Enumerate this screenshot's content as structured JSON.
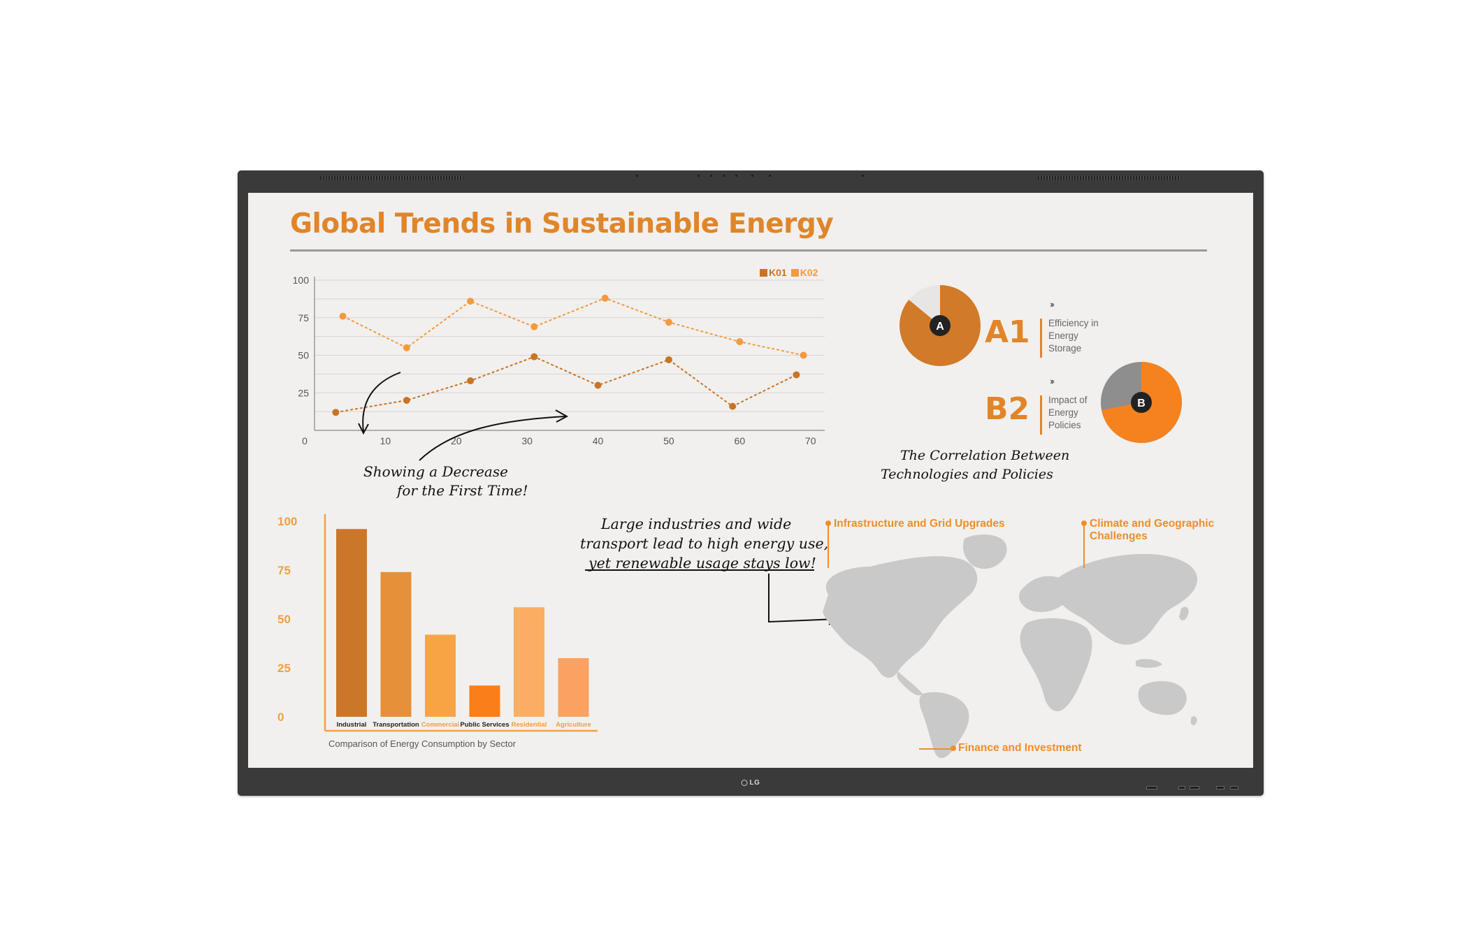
{
  "page": {
    "title": "Global Trends in Sustainable Energy",
    "brand": "LG"
  },
  "line_chart_annotation": [
    "Showing a Decrease",
    "for the First Time!"
  ],
  "bar_chart_annotation": [
    "Large industries and wide",
    "transport lead to high energy use,",
    "yet renewable usage stays low!"
  ],
  "correlation_note": [
    "The Correlation Between",
    "Technologies and Policies"
  ],
  "pies": [
    {
      "marker": "A",
      "code": "A1",
      "desc": [
        "Efficiency in",
        "Energy",
        "Storage"
      ],
      "share": 0.86,
      "fill": "#d17a29",
      "rest": "#e8e6e4"
    },
    {
      "marker": "B",
      "code": "B2",
      "desc": [
        "Impact of",
        "Energy",
        "Policies"
      ],
      "share": 0.72,
      "fill": "#f5821f",
      "rest": "#8e8e8e"
    }
  ],
  "map": {
    "labels": {
      "infrastructure": "Infrastructure and Grid Upgrades",
      "climate": [
        "Climate and Geographic",
        "Challenges"
      ],
      "finance": "Finance and Investment"
    }
  },
  "colors": {
    "accent": "#e0852a",
    "k01": "#c97425",
    "k02": "#f39a3f",
    "map_land": "#c9c9c9",
    "frame": "#3a3a3a"
  },
  "chart_data": [
    {
      "type": "line",
      "title": "",
      "xlabel": "",
      "ylabel": "",
      "xlim": [
        0,
        72
      ],
      "ylim": [
        0,
        100
      ],
      "x_ticks": [
        0,
        10,
        20,
        30,
        40,
        50,
        60,
        70
      ],
      "y_ticks": [
        25,
        50,
        75,
        100
      ],
      "legend": "top-right",
      "grid": true,
      "series": [
        {
          "name": "K01",
          "color": "#c97425",
          "points": [
            [
              3,
              12
            ],
            [
              13,
              20
            ],
            [
              22,
              33
            ],
            [
              31,
              49
            ],
            [
              40,
              30
            ],
            [
              50,
              47
            ],
            [
              59,
              16
            ],
            [
              68,
              37
            ]
          ]
        },
        {
          "name": "K02",
          "color": "#f39a3f",
          "points": [
            [
              4,
              76
            ],
            [
              13,
              55
            ],
            [
              22,
              86
            ],
            [
              31,
              69
            ],
            [
              41,
              88
            ],
            [
              50,
              72
            ],
            [
              60,
              59
            ],
            [
              69,
              50
            ]
          ]
        }
      ]
    },
    {
      "type": "bar",
      "title": "Comparison of Energy Consumption by Sector",
      "categories": [
        "Industrial",
        "Transportation",
        "Commercial",
        "Public Services",
        "Residential",
        "Agriculture"
      ],
      "values": [
        96,
        74,
        42,
        16,
        56,
        30
      ],
      "colors": [
        "#cb772a",
        "#e6913a",
        "#f9a444",
        "#fa7f1a",
        "#fbae63",
        "#f9a262"
      ],
      "label_colors": [
        "#222222",
        "#222222",
        "#f39a3f",
        "#222222",
        "#f39a3f",
        "#f39a3f"
      ],
      "ylim": [
        0,
        100
      ],
      "y_ticks": [
        0,
        25,
        50,
        75,
        100
      ],
      "xlabel": "",
      "ylabel": ""
    }
  ]
}
